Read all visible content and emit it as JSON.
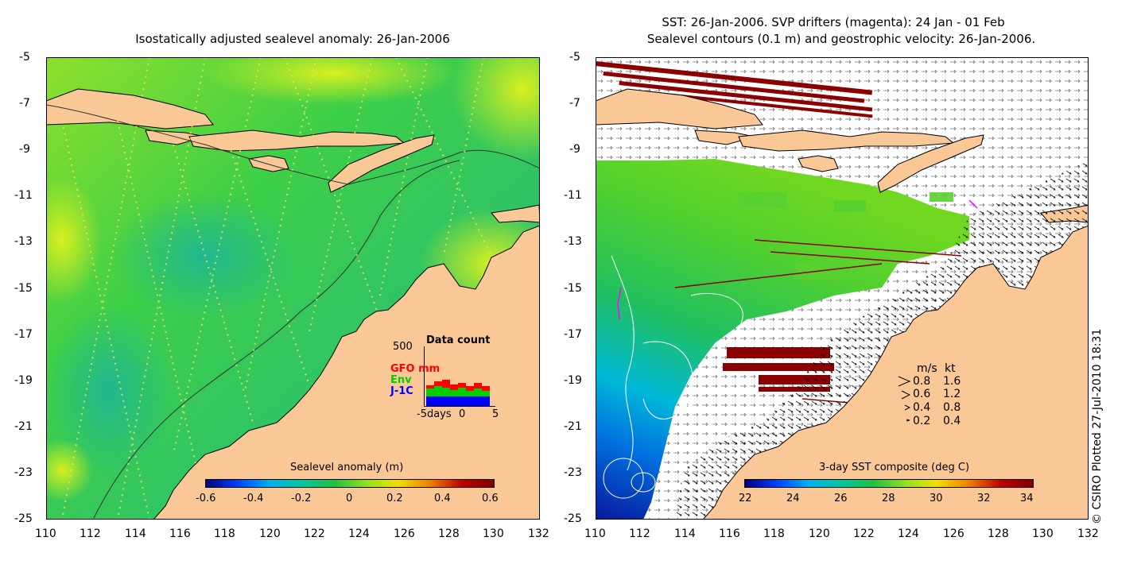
{
  "left_panel": {
    "title": "Isostatically adjusted sealevel anomaly: 26-Jan-2006",
    "y_ticks": [
      "-5",
      "-7",
      "-9",
      "-11",
      "-13",
      "-15",
      "-17",
      "-19",
      "-21",
      "-23",
      "-25"
    ],
    "x_ticks": [
      "110",
      "112",
      "114",
      "116",
      "118",
      "120",
      "122",
      "124",
      "126",
      "128",
      "130",
      "132"
    ],
    "colorbar": {
      "title": "Sealevel anomaly (m)",
      "ticks": [
        "-0.6",
        "-0.4",
        "-0.2",
        "0",
        "0.2",
        "0.4",
        "0.6"
      ]
    },
    "data_count": {
      "title": "Data count",
      "y_max": "500",
      "legend": [
        "GFO mm",
        "Env",
        "J-1C"
      ],
      "legend_colors": [
        "#ff0000",
        "#00d000",
        "#0000ff"
      ],
      "x_ticks": [
        "-5days",
        "0",
        "5"
      ]
    }
  },
  "right_panel": {
    "title_line1": "SST: 26-Jan-2006. SVP drifters (magenta): 24 Jan - 01 Feb",
    "title_line2": "Sealevel contours (0.1 m) and geostrophic velocity: 26-Jan-2006.",
    "y_ticks": [
      "-5",
      "-7",
      "-9",
      "-11",
      "-13",
      "-15",
      "-17",
      "-19",
      "-21",
      "-23",
      "-25"
    ],
    "x_ticks": [
      "110",
      "112",
      "114",
      "116",
      "118",
      "120",
      "122",
      "124",
      "126",
      "128",
      "130",
      "132"
    ],
    "colorbar": {
      "title": "3-day SST composite (deg C)",
      "ticks": [
        "22",
        "24",
        "26",
        "28",
        "30",
        "32",
        "34"
      ]
    },
    "speed_legend": {
      "header_ms": "m/s",
      "header_kt": "kt",
      "rows": [
        {
          "ms": "0.8",
          "kt": "1.6"
        },
        {
          "ms": "0.6",
          "kt": "1.2"
        },
        {
          "ms": "0.4",
          "kt": "0.8"
        },
        {
          "ms": "0.2",
          "kt": "0.4"
        }
      ]
    }
  },
  "credit": "© CSIRO Plotted 27-Jul-2010 18:31",
  "colors": {
    "land": "#fac896",
    "sea_anomaly": "#5ed83a",
    "sst_arrows": "#000000",
    "drifters": "#ff00ff",
    "data_gaps": "#8b0000"
  }
}
